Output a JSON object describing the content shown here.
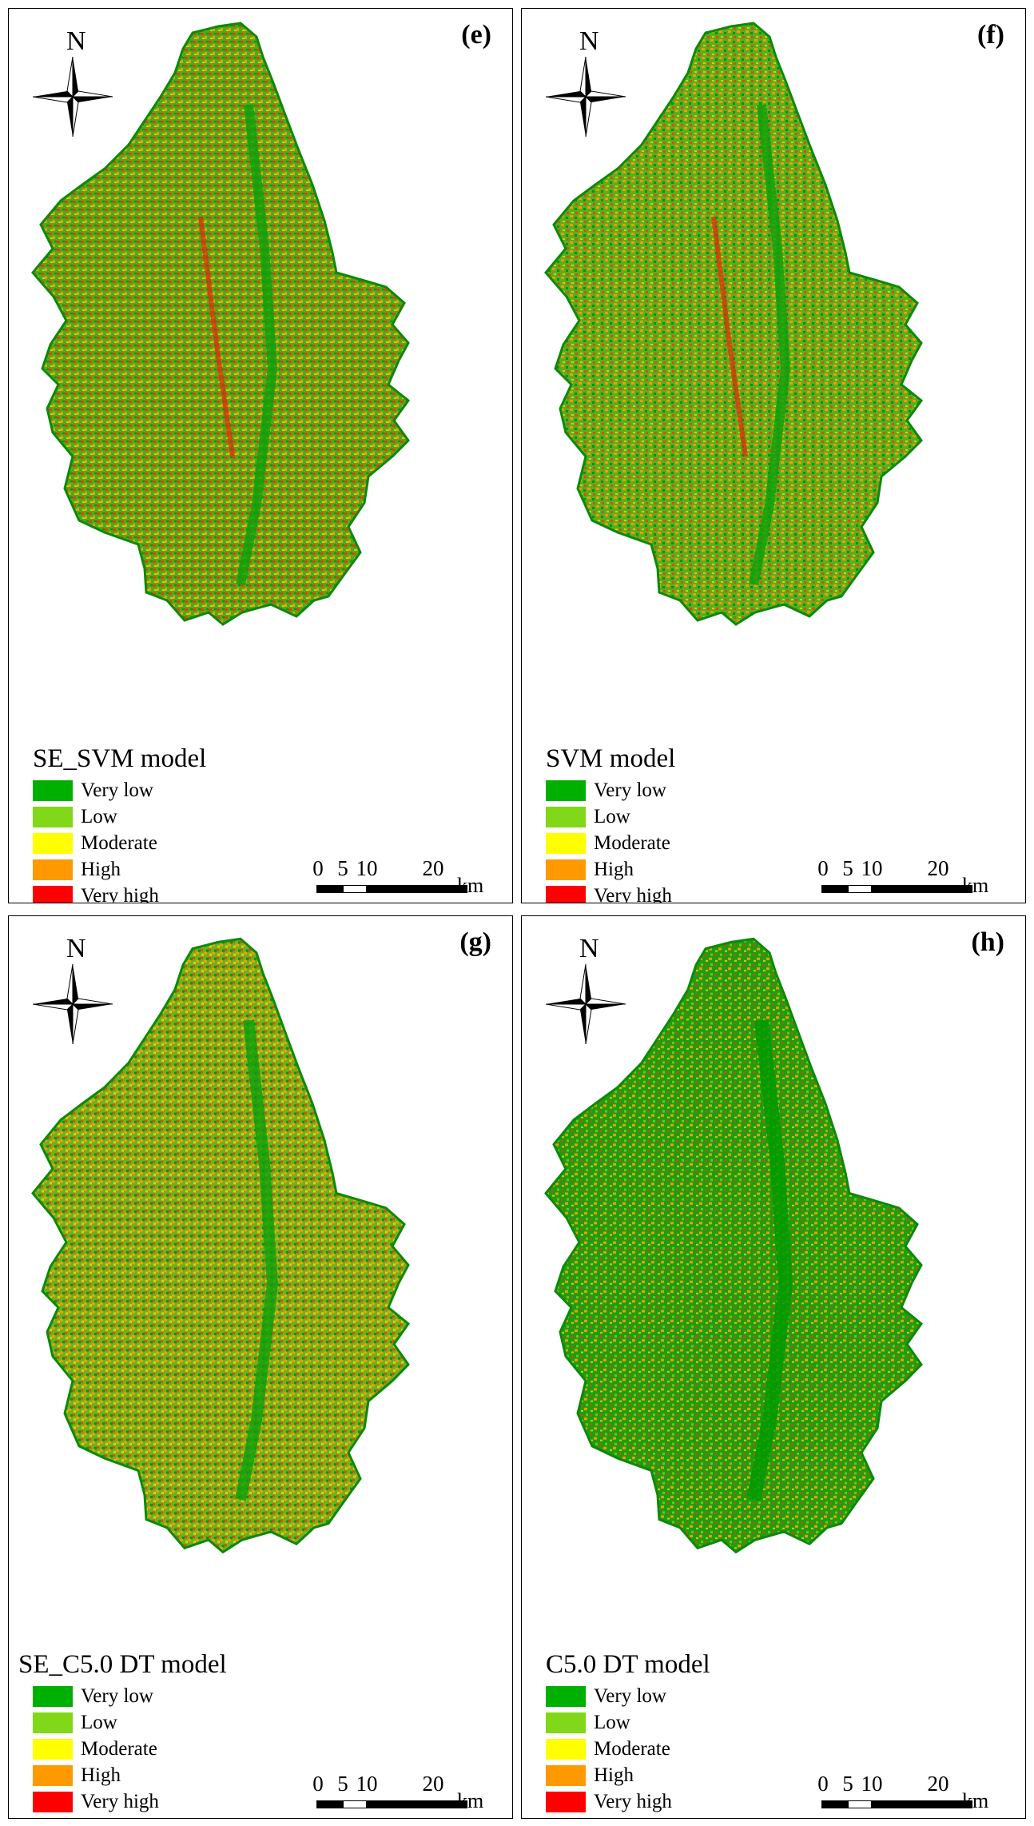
{
  "panels": [
    {
      "label": "(e)",
      "model": "SE_SVM model"
    },
    {
      "label": "(f)",
      "model": "SVM model"
    },
    {
      "label": "(g)",
      "model": "SE_C5.0 DT model"
    },
    {
      "label": "(h)",
      "model": "C5.0 DT model"
    }
  ],
  "north": "N",
  "legend": [
    {
      "label": "Very low",
      "color": "#00b000"
    },
    {
      "label": "Low",
      "color": "#80d818"
    },
    {
      "label": "Moderate",
      "color": "#ffff00"
    },
    {
      "label": "High",
      "color": "#ff9900"
    },
    {
      "label": "Very high",
      "color": "#ff0000"
    }
  ],
  "scale": {
    "ticks": [
      "0",
      "5",
      "10",
      "20"
    ],
    "unit": "km"
  }
}
